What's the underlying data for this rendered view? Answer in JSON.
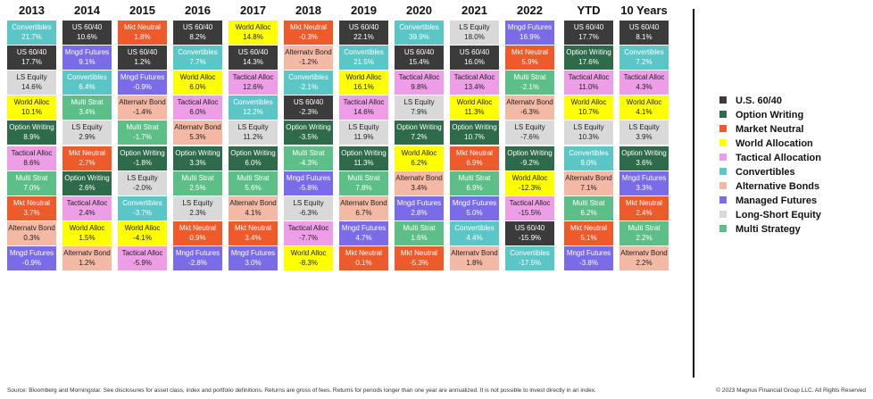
{
  "columns": [
    {
      "header": "2013",
      "cells": [
        {
          "label": "Convertibles",
          "value": "21.7%",
          "color": "#5ac6c6"
        },
        {
          "label": "US 60/40",
          "value": "17.7%",
          "color": "#3b3b3b"
        },
        {
          "label": "LS Equity",
          "value": "14.6%",
          "color": "#d9d9d9"
        },
        {
          "label": "World Alloc",
          "value": "10.1%",
          "color": "#ffff00"
        },
        {
          "label": "Option Writing",
          "value": "8.9%",
          "color": "#2d6b4a"
        },
        {
          "label": "Tactical Alloc",
          "value": "8.6%",
          "color": "#ee9ee6"
        },
        {
          "label": "Multi Strat",
          "value": "7.0%",
          "color": "#5dbf88"
        },
        {
          "label": "Mkt Neutral",
          "value": "3.7%",
          "color": "#ee5a2a"
        },
        {
          "label": "Alternatv Bond",
          "value": "0.3%",
          "color": "#f4b9a5"
        },
        {
          "label": "Mngd Futures",
          "value": "-0.9%",
          "color": "#7a6ce8"
        }
      ]
    },
    {
      "header": "2014",
      "cells": [
        {
          "label": "US 60/40",
          "value": "10.6%",
          "color": "#3b3b3b"
        },
        {
          "label": "Mngd Futures",
          "value": "9.1%",
          "color": "#7a6ce8"
        },
        {
          "label": "Convertibles",
          "value": "6.4%",
          "color": "#5ac6c6"
        },
        {
          "label": "Multi Strat",
          "value": "3.4%",
          "color": "#5dbf88"
        },
        {
          "label": "LS Equity",
          "value": "2.9%",
          "color": "#d9d9d9"
        },
        {
          "label": "Mkt Neutral",
          "value": "2.7%",
          "color": "#ee5a2a"
        },
        {
          "label": "Option Writing",
          "value": "2.6%",
          "color": "#2d6b4a"
        },
        {
          "label": "Tactical Alloc",
          "value": "2.4%",
          "color": "#ee9ee6"
        },
        {
          "label": "World Alloc",
          "value": "1.5%",
          "color": "#ffff00"
        },
        {
          "label": "Alternatv Bond",
          "value": "1.2%",
          "color": "#f4b9a5"
        }
      ]
    },
    {
      "header": "2015",
      "cells": [
        {
          "label": "Mkt Neutral",
          "value": "1.8%",
          "color": "#ee5a2a"
        },
        {
          "label": "US 60/40",
          "value": "1.2%",
          "color": "#3b3b3b"
        },
        {
          "label": "Mngd Futures",
          "value": "-0.9%",
          "color": "#7a6ce8"
        },
        {
          "label": "Alternatv Bond",
          "value": "-1.4%",
          "color": "#f4b9a5"
        },
        {
          "label": "Multi Strat",
          "value": "-1.7%",
          "color": "#5dbf88"
        },
        {
          "label": "Option Writing",
          "value": "-1.8%",
          "color": "#2d6b4a"
        },
        {
          "label": "LS Equity",
          "value": "-2.0%",
          "color": "#d9d9d9"
        },
        {
          "label": "Convertibles",
          "value": "-3.7%",
          "color": "#5ac6c6"
        },
        {
          "label": "World Alloc",
          "value": "-4.1%",
          "color": "#ffff00"
        },
        {
          "label": "Tactical Alloc",
          "value": "-5.9%",
          "color": "#ee9ee6"
        }
      ]
    },
    {
      "header": "2016",
      "cells": [
        {
          "label": "US 60/40",
          "value": "8.2%",
          "color": "#3b3b3b"
        },
        {
          "label": "Convertibles",
          "value": "7.7%",
          "color": "#5ac6c6"
        },
        {
          "label": "World Alloc",
          "value": "6.0%",
          "color": "#ffff00"
        },
        {
          "label": "Tactical Alloc",
          "value": "6.0%",
          "color": "#ee9ee6"
        },
        {
          "label": "Alternatv Bond",
          "value": "5.3%",
          "color": "#f4b9a5"
        },
        {
          "label": "Option Writing",
          "value": "3.3%",
          "color": "#2d6b4a"
        },
        {
          "label": "Multi Strat",
          "value": "2.5%",
          "color": "#5dbf88"
        },
        {
          "label": "LS Equity",
          "value": "2.3%",
          "color": "#d9d9d9"
        },
        {
          "label": "Mkt Neutral",
          "value": "0.9%",
          "color": "#ee5a2a"
        },
        {
          "label": "Mngd Futures",
          "value": "-2.8%",
          "color": "#7a6ce8"
        }
      ]
    },
    {
      "header": "2017",
      "cells": [
        {
          "label": "World Alloc",
          "value": "14.8%",
          "color": "#ffff00"
        },
        {
          "label": "US 60/40",
          "value": "14.3%",
          "color": "#3b3b3b"
        },
        {
          "label": "Tactical Alloc",
          "value": "12.6%",
          "color": "#ee9ee6"
        },
        {
          "label": "Convertibles",
          "value": "12.2%",
          "color": "#5ac6c6"
        },
        {
          "label": "LS Equity",
          "value": "11.2%",
          "color": "#d9d9d9"
        },
        {
          "label": "Option Writing",
          "value": "6.0%",
          "color": "#2d6b4a"
        },
        {
          "label": "Multi Strat",
          "value": "5.6%",
          "color": "#5dbf88"
        },
        {
          "label": "Alternatv Bond",
          "value": "4.1%",
          "color": "#f4b9a5"
        },
        {
          "label": "Mkt Neutral",
          "value": "3.4%",
          "color": "#ee5a2a"
        },
        {
          "label": "Mngd Futures",
          "value": "3.0%",
          "color": "#7a6ce8"
        }
      ]
    },
    {
      "header": "2018",
      "cells": [
        {
          "label": "Mkt Neutral",
          "value": "-0.3%",
          "color": "#ee5a2a"
        },
        {
          "label": "Alternatv Bond",
          "value": "-1.2%",
          "color": "#f4b9a5"
        },
        {
          "label": "Convertibles",
          "value": "-2.1%",
          "color": "#5ac6c6"
        },
        {
          "label": "US 60/40",
          "value": "-2.3%",
          "color": "#3b3b3b"
        },
        {
          "label": "Option Writing",
          "value": "-3.5%",
          "color": "#2d6b4a"
        },
        {
          "label": "Multi Strat",
          "value": "-4.3%",
          "color": "#5dbf88"
        },
        {
          "label": "Mngd Futures",
          "value": "-5.8%",
          "color": "#7a6ce8"
        },
        {
          "label": "LS Equity",
          "value": "-6.3%",
          "color": "#d9d9d9"
        },
        {
          "label": "Tactical Alloc",
          "value": "-7.7%",
          "color": "#ee9ee6"
        },
        {
          "label": "World Alloc",
          "value": "-8.3%",
          "color": "#ffff00"
        }
      ]
    },
    {
      "header": "2019",
      "cells": [
        {
          "label": "US 60/40",
          "value": "22.1%",
          "color": "#3b3b3b"
        },
        {
          "label": "Convertibles",
          "value": "21.5%",
          "color": "#5ac6c6"
        },
        {
          "label": "World Alloc",
          "value": "16.1%",
          "color": "#ffff00"
        },
        {
          "label": "Tactical Alloc",
          "value": "14.6%",
          "color": "#ee9ee6"
        },
        {
          "label": "LS Equity",
          "value": "11.9%",
          "color": "#d9d9d9"
        },
        {
          "label": "Option Writing",
          "value": "11.3%",
          "color": "#2d6b4a"
        },
        {
          "label": "Multi Strat",
          "value": "7.8%",
          "color": "#5dbf88"
        },
        {
          "label": "Alternatv Bond",
          "value": "6.7%",
          "color": "#f4b9a5"
        },
        {
          "label": "Mngd Futures",
          "value": "4.7%",
          "color": "#7a6ce8"
        },
        {
          "label": "Mkt Neutral",
          "value": "0.1%",
          "color": "#ee5a2a"
        }
      ]
    },
    {
      "header": "2020",
      "cells": [
        {
          "label": "Convertibles",
          "value": "39.9%",
          "color": "#5ac6c6"
        },
        {
          "label": "US 60/40",
          "value": "15.4%",
          "color": "#3b3b3b"
        },
        {
          "label": "Tactical Alloc",
          "value": "9.8%",
          "color": "#ee9ee6"
        },
        {
          "label": "LS Equity",
          "value": "7.9%",
          "color": "#d9d9d9"
        },
        {
          "label": "Option Writing",
          "value": "7.2%",
          "color": "#2d6b4a"
        },
        {
          "label": "World Alloc",
          "value": "6.2%",
          "color": "#ffff00"
        },
        {
          "label": "Alternatv Bond",
          "value": "3.4%",
          "color": "#f4b9a5"
        },
        {
          "label": "Mngd Futures",
          "value": "2.8%",
          "color": "#7a6ce8"
        },
        {
          "label": "Multi Strat",
          "value": "1.6%",
          "color": "#5dbf88"
        },
        {
          "label": "Mkt Neutral",
          "value": "-5.3%",
          "color": "#ee5a2a"
        }
      ]
    },
    {
      "header": "2021",
      "cells": [
        {
          "label": "LS Equity",
          "value": "18.0%",
          "color": "#d9d9d9"
        },
        {
          "label": "US 60/40",
          "value": "16.0%",
          "color": "#3b3b3b"
        },
        {
          "label": "Tactical Alloc",
          "value": "13.4%",
          "color": "#ee9ee6"
        },
        {
          "label": "World Alloc",
          "value": "11.3%",
          "color": "#ffff00"
        },
        {
          "label": "Option Writing",
          "value": "10.7%",
          "color": "#2d6b4a"
        },
        {
          "label": "Mkt Neutral",
          "value": "6.9%",
          "color": "#ee5a2a"
        },
        {
          "label": "Multi Strat",
          "value": "6.9%",
          "color": "#5dbf88"
        },
        {
          "label": "Mngd Futures",
          "value": "5.0%",
          "color": "#7a6ce8"
        },
        {
          "label": "Convertibles",
          "value": "4.4%",
          "color": "#5ac6c6"
        },
        {
          "label": "Alternatv Bond",
          "value": "1.8%",
          "color": "#f4b9a5"
        }
      ]
    },
    {
      "header": "2022",
      "cells": [
        {
          "label": "Mngd Futures",
          "value": "16.9%",
          "color": "#7a6ce8"
        },
        {
          "label": "Mkt Neutral",
          "value": "5.9%",
          "color": "#ee5a2a"
        },
        {
          "label": "Multi Strat",
          "value": "-2.1%",
          "color": "#5dbf88"
        },
        {
          "label": "Alternatv Bond",
          "value": "-6.3%",
          "color": "#f4b9a5"
        },
        {
          "label": "LS Equity",
          "value": "-7.6%",
          "color": "#d9d9d9"
        },
        {
          "label": "Option Writing",
          "value": "-9.2%",
          "color": "#2d6b4a"
        },
        {
          "label": "World Alloc",
          "value": "-12.3%",
          "color": "#ffff00"
        },
        {
          "label": "Tactical Alloc",
          "value": "-15.5%",
          "color": "#ee9ee6"
        },
        {
          "label": "US 60/40",
          "value": "-15.9%",
          "color": "#3b3b3b"
        },
        {
          "label": "Convertibles",
          "value": "-17.5%",
          "color": "#5ac6c6"
        }
      ]
    },
    {
      "header": "YTD",
      "cells": [
        {
          "label": "US 60/40",
          "value": "17.7%",
          "color": "#3b3b3b"
        },
        {
          "label": "Option Writing",
          "value": "17.6%",
          "color": "#2d6b4a"
        },
        {
          "label": "Tactical Alloc",
          "value": "11.0%",
          "color": "#ee9ee6"
        },
        {
          "label": "World Alloc",
          "value": "10.7%",
          "color": "#ffff00"
        },
        {
          "label": "LS Equity",
          "value": "10.3%",
          "color": "#d9d9d9"
        },
        {
          "label": "Convertibles",
          "value": "9.0%",
          "color": "#5ac6c6"
        },
        {
          "label": "Alternatv Bond",
          "value": "7.1%",
          "color": "#f4b9a5"
        },
        {
          "label": "Multi Strat",
          "value": "6.2%",
          "color": "#5dbf88"
        },
        {
          "label": "Mkt Neutral",
          "value": "5.1%",
          "color": "#ee5a2a"
        },
        {
          "label": "Mngd Futures",
          "value": "-3.8%",
          "color": "#7a6ce8"
        }
      ]
    },
    {
      "header": "10 Years",
      "cells": [
        {
          "label": "US 60/40",
          "value": "8.1%",
          "color": "#3b3b3b"
        },
        {
          "label": "Convertibles",
          "value": "7.2%",
          "color": "#5ac6c6"
        },
        {
          "label": "Tactical Alloc",
          "value": "4.3%",
          "color": "#ee9ee6"
        },
        {
          "label": "World Alloc",
          "value": "4.1%",
          "color": "#ffff00"
        },
        {
          "label": "LS Equity",
          "value": "3.9%",
          "color": "#d9d9d9"
        },
        {
          "label": "Option Writing",
          "value": "3.6%",
          "color": "#2d6b4a"
        },
        {
          "label": "Mngd Futures",
          "value": "3.3%",
          "color": "#7a6ce8"
        },
        {
          "label": "Mkt Neutral",
          "value": "2.4%",
          "color": "#ee5a2a"
        },
        {
          "label": "Multi Strat",
          "value": "2.2%",
          "color": "#5dbf88"
        },
        {
          "label": "Alternatv Bond",
          "value": "2.2%",
          "color": "#f4b9a5"
        }
      ]
    }
  ],
  "legend": [
    {
      "name": "U.S. 60/40",
      "color": "#3b3b3b"
    },
    {
      "name": "Option Writing",
      "color": "#2d6b4a"
    },
    {
      "name": "Market Neutral",
      "color": "#ee5a2a"
    },
    {
      "name": "World Allocation",
      "color": "#ffff00"
    },
    {
      "name": "Tactical Allocation",
      "color": "#ee9ee6"
    },
    {
      "name": "Convertibles",
      "color": "#5ac6c6"
    },
    {
      "name": "Alternative Bonds",
      "color": "#f4b9a5"
    },
    {
      "name": "Managed Futures",
      "color": "#7a6ce8"
    },
    {
      "name": "Long-Short Equity",
      "color": "#d9d9d9"
    },
    {
      "name": "Multi Strategy",
      "color": "#5dbf88"
    }
  ],
  "footer": {
    "source": "Source: Bloomberg and Morningstar. See disclosures for asset class, index and portfolio definitions. Returns are gross of fees. Returns for periods longer than one year are annualized. It is not possible to invest directly in an index.",
    "copyright": "© 2023 Magnus Financial Group LLC. All Rights Reserved"
  }
}
